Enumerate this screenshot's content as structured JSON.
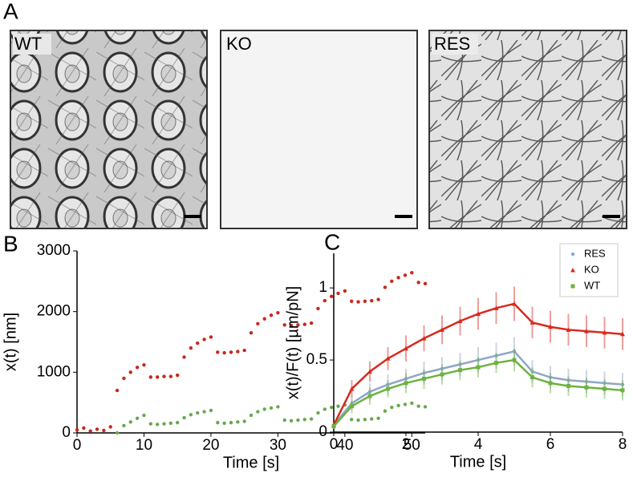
{
  "panel_labels": [
    "A",
    "B",
    "C"
  ],
  "images": [
    {
      "label": "WT"
    },
    {
      "label": "KO"
    },
    {
      "label": "RES"
    }
  ],
  "chart_data": [
    {
      "type": "scatter",
      "xlabel": "Time [s]",
      "ylabel": "x(t) [nm]",
      "xlim": [
        0,
        52
      ],
      "xticks": [
        0,
        10,
        20,
        30,
        40,
        50
      ],
      "ylim": [
        0,
        3000
      ],
      "yticks": [
        0,
        1000,
        2000,
        3000
      ],
      "series": [
        {
          "color": "#c8281c",
          "x": [
            0,
            1,
            2,
            3,
            4,
            5,
            6,
            7,
            8,
            9,
            10,
            11,
            12,
            13,
            14,
            15,
            16,
            17,
            18,
            19,
            20,
            21,
            22,
            23,
            24,
            25,
            26,
            27,
            28,
            29,
            30,
            31,
            32,
            33,
            34,
            35,
            36,
            37,
            38,
            39,
            40,
            41,
            42,
            43,
            44,
            45,
            46,
            47,
            48,
            49,
            50,
            51,
            52
          ],
          "values": [
            50,
            80,
            30,
            60,
            40,
            100,
            700,
            900,
            1000,
            1080,
            1120,
            920,
            920,
            930,
            930,
            950,
            1250,
            1400,
            1480,
            1540,
            1580,
            1330,
            1320,
            1330,
            1340,
            1360,
            1650,
            1800,
            1880,
            1940,
            1980,
            1780,
            1770,
            1780,
            1790,
            1810,
            2050,
            2180,
            2250,
            2300,
            2340,
            2170,
            2160,
            2170,
            2180,
            2200,
            2400,
            2500,
            2560,
            2600,
            2640,
            2480,
            2460
          ]
        },
        {
          "color": "#6aa84f",
          "x": [
            6,
            7,
            8,
            9,
            10,
            11,
            12,
            13,
            14,
            15,
            16,
            17,
            18,
            19,
            20,
            21,
            22,
            23,
            24,
            25,
            26,
            27,
            28,
            29,
            30,
            31,
            32,
            33,
            34,
            35,
            36,
            37,
            38,
            39,
            40,
            41,
            42,
            43,
            44,
            45,
            46,
            47,
            48,
            49,
            50,
            51,
            52
          ],
          "values": [
            0,
            120,
            180,
            240,
            290,
            150,
            140,
            150,
            160,
            170,
            250,
            300,
            330,
            350,
            370,
            170,
            160,
            170,
            180,
            190,
            290,
            350,
            390,
            410,
            430,
            210,
            200,
            210,
            220,
            230,
            330,
            390,
            420,
            440,
            460,
            220,
            210,
            220,
            230,
            240,
            360,
            420,
            450,
            470,
            490,
            440,
            430
          ]
        }
      ]
    },
    {
      "type": "errorbar",
      "xlabel": "Time [s]",
      "ylabel": "x(t)/F(t) [µm/pN]",
      "xlim": [
        0,
        8
      ],
      "xticks": [
        0,
        2,
        4,
        6,
        8
      ],
      "ylim": [
        0,
        1.24
      ],
      "yticks": [
        0,
        0.5,
        1
      ],
      "legend": "upper right",
      "x": [
        0,
        0.5,
        1,
        1.5,
        2,
        2.5,
        3,
        3.5,
        4,
        4.5,
        5,
        5.5,
        6,
        6.5,
        7,
        7.5,
        8
      ],
      "series": [
        {
          "name": "RES",
          "color": "#8fa6c8",
          "marker": "circle",
          "values": [
            0.05,
            0.2,
            0.28,
            0.33,
            0.37,
            0.41,
            0.44,
            0.47,
            0.5,
            0.53,
            0.56,
            0.42,
            0.38,
            0.36,
            0.35,
            0.34,
            0.33
          ],
          "errors": [
            0.02,
            0.05,
            0.06,
            0.07,
            0.07,
            0.08,
            0.08,
            0.08,
            0.09,
            0.09,
            0.1,
            0.08,
            0.08,
            0.08,
            0.08,
            0.08,
            0.08
          ]
        },
        {
          "name": "KO",
          "color": "#d62b1f",
          "marker": "triangle",
          "values": [
            0.05,
            0.3,
            0.42,
            0.51,
            0.58,
            0.65,
            0.71,
            0.77,
            0.82,
            0.86,
            0.89,
            0.76,
            0.73,
            0.71,
            0.7,
            0.69,
            0.68
          ],
          "errors": [
            0.02,
            0.06,
            0.07,
            0.08,
            0.09,
            0.09,
            0.1,
            0.1,
            0.11,
            0.11,
            0.12,
            0.11,
            0.11,
            0.11,
            0.11,
            0.11,
            0.11
          ]
        },
        {
          "name": "WT",
          "color": "#6cb33e",
          "marker": "square",
          "values": [
            0.04,
            0.18,
            0.25,
            0.3,
            0.34,
            0.37,
            0.4,
            0.43,
            0.45,
            0.48,
            0.5,
            0.38,
            0.34,
            0.32,
            0.31,
            0.3,
            0.29
          ],
          "errors": [
            0.02,
            0.05,
            0.06,
            0.06,
            0.07,
            0.07,
            0.07,
            0.07,
            0.07,
            0.07,
            0.08,
            0.07,
            0.07,
            0.07,
            0.07,
            0.07,
            0.07
          ]
        }
      ]
    }
  ]
}
